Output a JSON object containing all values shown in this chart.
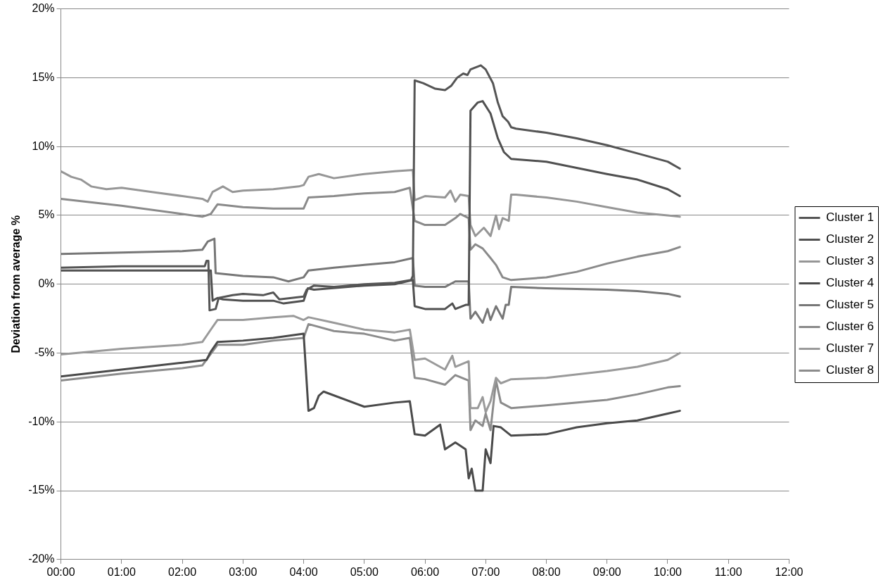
{
  "chart_data": {
    "type": "line",
    "ylabel": "Deviation from average %",
    "xlim": [
      0,
      12
    ],
    "xticks": [
      {
        "value": 0,
        "label": "00:00"
      },
      {
        "value": 1,
        "label": "01:00"
      },
      {
        "value": 2,
        "label": "02:00"
      },
      {
        "value": 3,
        "label": "03:00"
      },
      {
        "value": 4,
        "label": "04:00"
      },
      {
        "value": 5,
        "label": "05:00"
      },
      {
        "value": 6,
        "label": "06:00"
      },
      {
        "value": 7,
        "label": "07:00"
      },
      {
        "value": 8,
        "label": "08:00"
      },
      {
        "value": 9,
        "label": "09:00"
      },
      {
        "value": 10,
        "label": "10:00"
      },
      {
        "value": 11,
        "label": "11:00"
      },
      {
        "value": 12,
        "label": "12:00"
      }
    ],
    "ylim": [
      -20,
      20
    ],
    "yticks": [
      {
        "value": -20,
        "label": "-20%"
      },
      {
        "value": -15,
        "label": "-15%"
      },
      {
        "value": -10,
        "label": "-10%"
      },
      {
        "value": -5,
        "label": "-5%"
      },
      {
        "value": 0,
        "label": "0%"
      },
      {
        "value": 5,
        "label": "5%"
      },
      {
        "value": 10,
        "label": "10%"
      },
      {
        "value": 15,
        "label": "15%"
      },
      {
        "value": 20,
        "label": "20%"
      }
    ],
    "grid": "y",
    "legend": "right",
    "marker": "none",
    "line_style": "solid",
    "series": [
      {
        "name": "Cluster 1",
        "color": "#555555",
        "x": [
          0,
          1,
          2,
          2.37,
          2.4,
          2.43,
          2.45,
          2.55,
          2.6,
          2.83,
          3,
          3.33,
          3.5,
          3.6,
          4,
          4.05,
          4.17,
          4.5,
          5,
          5.5,
          5.77,
          5.8,
          5.83,
          5.97,
          6.17,
          6.33,
          6.43,
          6.53,
          6.63,
          6.7,
          6.75,
          6.92,
          7,
          7.12,
          7.2,
          7.28,
          7.37,
          7.42,
          7.5,
          8,
          8.5,
          9,
          9.5,
          10,
          10.2
        ],
        "values": [
          1.2,
          1.3,
          1.3,
          1.3,
          1.7,
          1.7,
          -1.9,
          -1.8,
          -1.0,
          -0.8,
          -0.7,
          -0.8,
          -0.6,
          -1.1,
          -0.9,
          -0.4,
          -0.1,
          -0.2,
          0.0,
          0.1,
          0.3,
          0.6,
          14.8,
          14.6,
          14.2,
          14.1,
          14.4,
          15.0,
          15.3,
          15.2,
          15.6,
          15.9,
          15.6,
          14.6,
          13.2,
          12.2,
          11.8,
          11.4,
          11.3,
          11.0,
          10.6,
          10.1,
          9.5,
          8.9,
          8.4
        ]
      },
      {
        "name": "Cluster 2",
        "color": "#505050",
        "x": [
          0,
          2.47,
          2.5,
          2.58,
          2.67,
          3,
          3.5,
          3.67,
          4,
          4.07,
          4.17,
          5,
          5.5,
          5.8,
          5.83,
          6,
          6.33,
          6.45,
          6.5,
          6.67,
          6.72,
          6.75,
          6.87,
          6.95,
          7.08,
          7.2,
          7.3,
          7.42,
          8,
          9,
          9.5,
          10,
          10.2
        ],
        "values": [
          1.0,
          1.0,
          -1.2,
          -1.0,
          -1.1,
          -1.2,
          -1.2,
          -1.4,
          -1.2,
          -0.3,
          -0.4,
          -0.1,
          0.0,
          0.3,
          -1.6,
          -1.8,
          -1.8,
          -1.4,
          -1.8,
          -1.5,
          -1.5,
          12.6,
          13.2,
          13.3,
          12.4,
          10.6,
          9.6,
          9.1,
          8.9,
          8.0,
          7.6,
          6.9,
          6.4
        ]
      },
      {
        "name": "Cluster 3",
        "color": "#969696",
        "x": [
          0,
          0.17,
          0.33,
          0.5,
          0.75,
          1,
          1.5,
          2,
          2.33,
          2.42,
          2.5,
          2.67,
          2.83,
          3,
          3.5,
          3.92,
          4,
          4.08,
          4.25,
          4.5,
          5,
          5.5,
          5.8,
          5.83,
          6,
          6.33,
          6.42,
          6.5,
          6.58,
          6.72,
          6.75,
          6.83,
          6.97,
          7.08,
          7.17,
          7.22,
          7.28,
          7.38,
          7.42,
          7.5,
          8,
          8.5,
          9,
          9.5,
          10,
          10.2
        ],
        "values": [
          8.2,
          7.8,
          7.6,
          7.1,
          6.9,
          7.0,
          6.7,
          6.4,
          6.2,
          6.0,
          6.7,
          7.1,
          6.7,
          6.8,
          6.9,
          7.1,
          7.2,
          7.8,
          8.0,
          7.7,
          8.0,
          8.2,
          8.3,
          6.1,
          6.4,
          6.3,
          6.8,
          6.0,
          6.5,
          6.4,
          4.3,
          3.5,
          4.1,
          3.5,
          5.0,
          4.0,
          4.8,
          4.6,
          6.5,
          6.5,
          6.3,
          6.0,
          5.6,
          5.2,
          5.0,
          4.9
        ]
      },
      {
        "name": "Cluster 4",
        "color": "#4a4a4a",
        "x": [
          0,
          1,
          2,
          2.4,
          2.47,
          2.58,
          3,
          3.5,
          4,
          4.08,
          4.17,
          4.25,
          4.33,
          5,
          5.5,
          5.75,
          5.83,
          6,
          6.25,
          6.33,
          6.5,
          6.67,
          6.72,
          6.77,
          6.83,
          6.95,
          7,
          7.08,
          7.13,
          7.25,
          7.42,
          8,
          8.5,
          9,
          9.5,
          10,
          10.2
        ],
        "values": [
          -6.7,
          -6.2,
          -5.7,
          -5.5,
          -4.9,
          -4.2,
          -4.1,
          -3.9,
          -3.6,
          -9.2,
          -9.0,
          -8.1,
          -7.8,
          -8.9,
          -8.6,
          -8.5,
          -10.9,
          -11.0,
          -10.2,
          -12.0,
          -11.5,
          -12.0,
          -14.1,
          -13.4,
          -15.0,
          -15.0,
          -12.0,
          -13.0,
          -10.3,
          -10.4,
          -11.0,
          -10.9,
          -10.4,
          -10.1,
          -9.9,
          -9.4,
          -9.2
        ]
      },
      {
        "name": "Cluster 5",
        "color": "#777777",
        "x": [
          0,
          1,
          2,
          2.33,
          2.42,
          2.53,
          2.55,
          3,
          3.5,
          3.75,
          4,
          4.08,
          4.5,
          5,
          5.5,
          5.8,
          5.83,
          6,
          6.33,
          6.5,
          6.72,
          6.75,
          6.83,
          6.95,
          7.03,
          7.08,
          7.17,
          7.28,
          7.33,
          7.38,
          7.42,
          8,
          9,
          9.5,
          10,
          10.2
        ],
        "values": [
          2.2,
          2.3,
          2.4,
          2.5,
          3.1,
          3.3,
          0.8,
          0.6,
          0.5,
          0.2,
          0.5,
          1.0,
          1.2,
          1.4,
          1.6,
          1.9,
          -0.1,
          -0.2,
          -0.2,
          0.2,
          0.2,
          -2.5,
          -2.0,
          -2.8,
          -1.8,
          -2.6,
          -1.6,
          -2.5,
          -1.5,
          -1.5,
          -0.2,
          -0.3,
          -0.4,
          -0.5,
          -0.7,
          -0.9
        ]
      },
      {
        "name": "Cluster 6",
        "color": "#8a8a8a",
        "x": [
          0,
          1,
          2,
          2.33,
          2.47,
          2.58,
          3,
          3.5,
          4,
          4.08,
          4.5,
          5,
          5.5,
          5.75,
          5.83,
          6,
          6.33,
          6.5,
          6.58,
          6.72,
          6.75,
          6.83,
          6.95,
          7.08,
          7.17,
          7.28,
          7.42,
          8,
          8.5,
          9,
          9.5,
          10,
          10.2
        ],
        "values": [
          6.2,
          5.7,
          5.1,
          4.9,
          5.1,
          5.8,
          5.6,
          5.5,
          5.5,
          6.3,
          6.4,
          6.6,
          6.7,
          7.0,
          4.6,
          4.3,
          4.3,
          4.8,
          5.1,
          4.8,
          2.5,
          2.9,
          2.6,
          1.9,
          1.4,
          0.5,
          0.3,
          0.5,
          0.9,
          1.5,
          2.0,
          2.4,
          2.7
        ]
      },
      {
        "name": "Cluster 7",
        "color": "#9a9a9a",
        "x": [
          0,
          1,
          2,
          2.33,
          2.47,
          2.58,
          3,
          3.5,
          3.83,
          4,
          4.08,
          4.5,
          5,
          5.5,
          5.75,
          5.83,
          6,
          6.33,
          6.45,
          6.5,
          6.72,
          6.75,
          6.87,
          6.95,
          7,
          7.08,
          7.17,
          7.25,
          7.42,
          8,
          9,
          9.5,
          10,
          10.2
        ],
        "values": [
          -5.1,
          -4.7,
          -4.4,
          -4.2,
          -3.3,
          -2.6,
          -2.6,
          -2.4,
          -2.3,
          -2.6,
          -2.4,
          -2.8,
          -3.3,
          -3.5,
          -3.3,
          -5.5,
          -5.4,
          -6.2,
          -5.2,
          -6.0,
          -5.6,
          -9.0,
          -9.0,
          -8.2,
          -9.3,
          -8.5,
          -6.8,
          -7.2,
          -6.9,
          -6.8,
          -6.3,
          -6.0,
          -5.5,
          -5.0
        ]
      },
      {
        "name": "Cluster 8",
        "color": "#8c8c8c",
        "x": [
          0,
          1,
          2,
          2.33,
          2.58,
          3,
          3.5,
          4,
          4.08,
          4.5,
          5,
          5.5,
          5.75,
          5.83,
          6,
          6.33,
          6.5,
          6.72,
          6.75,
          6.83,
          6.95,
          7,
          7.08,
          7.17,
          7.25,
          7.42,
          8,
          9,
          9.5,
          10,
          10.2
        ],
        "values": [
          -7.0,
          -6.5,
          -6.1,
          -5.9,
          -4.4,
          -4.4,
          -4.1,
          -3.9,
          -2.9,
          -3.4,
          -3.6,
          -4.1,
          -3.9,
          -6.8,
          -6.9,
          -7.3,
          -6.6,
          -7.0,
          -10.6,
          -9.9,
          -10.3,
          -9.4,
          -10.6,
          -7.0,
          -8.6,
          -9.0,
          -8.8,
          -8.4,
          -8.0,
          -7.5,
          -7.4
        ]
      }
    ]
  }
}
